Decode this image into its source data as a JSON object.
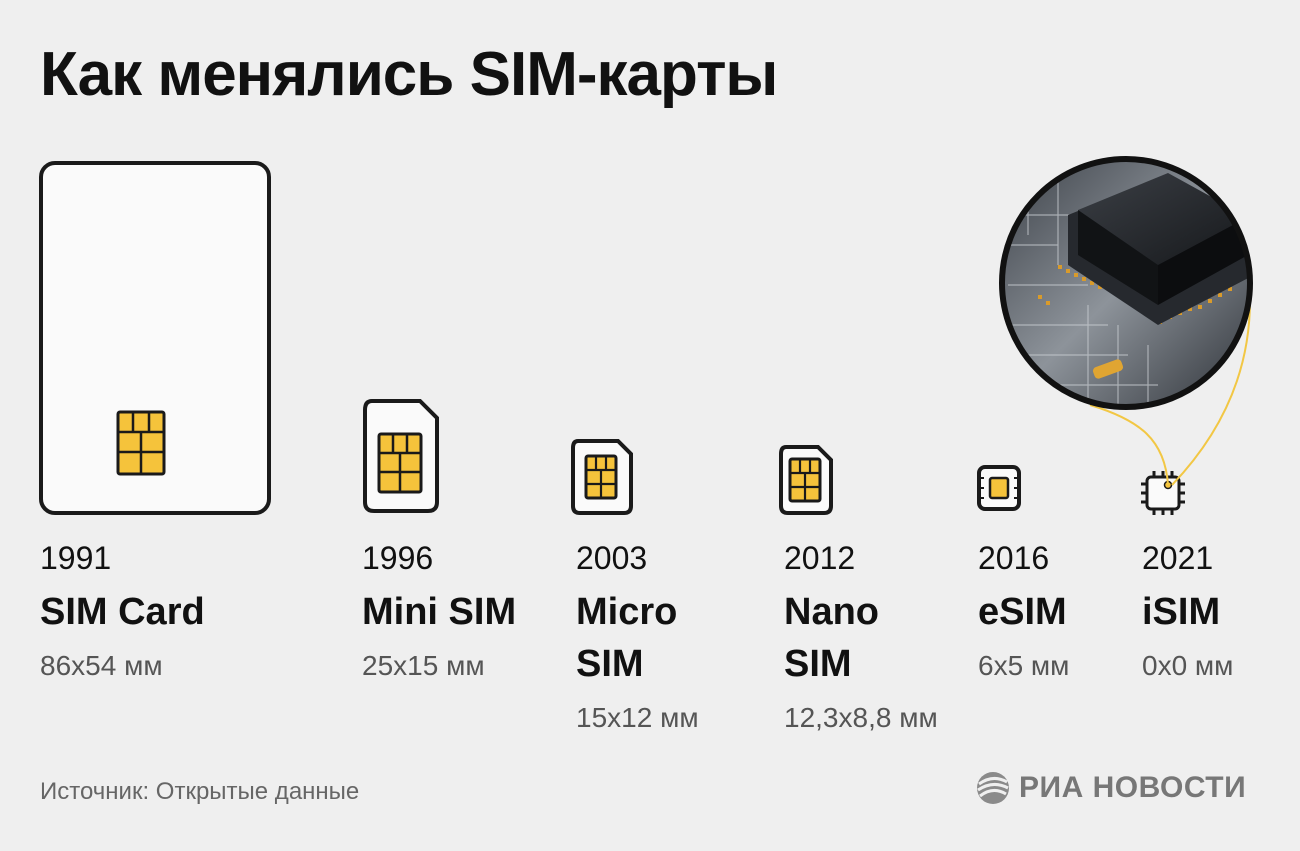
{
  "title": "Как менялись SIM-карты",
  "items": [
    {
      "year": "1991",
      "name": "SIM Card",
      "dims": "86x54 мм",
      "icon": "full-sim-card-icon"
    },
    {
      "year": "1996",
      "name": "Mini SIM",
      "dims": "25x15 мм",
      "icon": "mini-sim-icon"
    },
    {
      "year": "2003",
      "name": "Micro SIM",
      "dims": "15x12 мм",
      "icon": "micro-sim-icon"
    },
    {
      "year": "2012",
      "name": "Nano SIM",
      "dims": "12,3x8,8 мм",
      "icon": "nano-sim-icon"
    },
    {
      "year": "2016",
      "name": "eSIM",
      "dims": "6x5 мм",
      "icon": "esim-chip-icon"
    },
    {
      "year": "2021",
      "name": "iSIM",
      "dims": "0x0 мм",
      "icon": "isim-chip-icon"
    }
  ],
  "source": "Источник: Открытые данные",
  "logo": "РИА НОВОСТИ",
  "colors": {
    "background": "#efefef",
    "chip_gold": "#f5c33b",
    "outline": "#1a1a1a",
    "connector_line": "#f2c744",
    "card_fill": "#fafafa"
  }
}
